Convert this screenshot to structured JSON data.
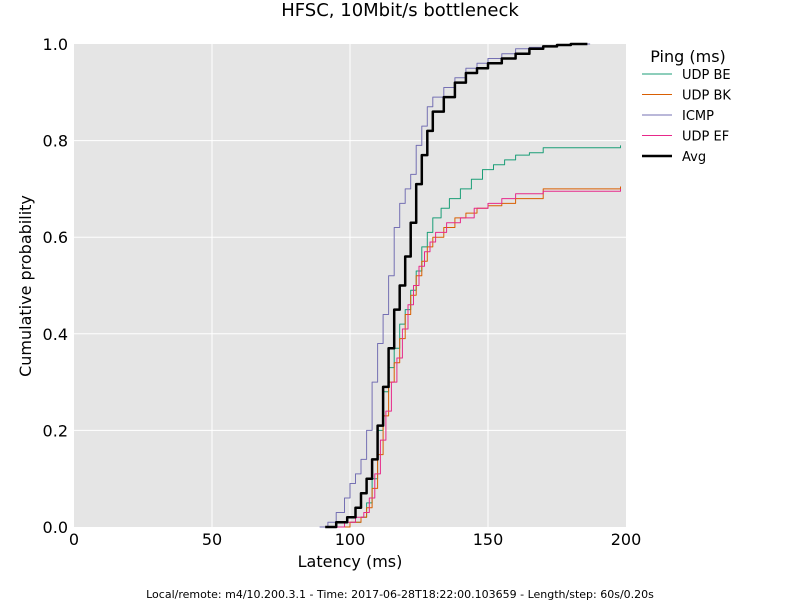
{
  "chart_data": {
    "type": "line",
    "title": "HFSC, 10Mbit/s bottleneck",
    "xlabel": "Latency (ms)",
    "ylabel": "Cumulative probability",
    "xlim": [
      0,
      200
    ],
    "ylim": [
      0,
      1.0
    ],
    "xticks": [
      "0",
      "50",
      "100",
      "150",
      "200"
    ],
    "yticks": [
      "0.0",
      "0.2",
      "0.4",
      "0.6",
      "0.8",
      "1.0"
    ],
    "grid": true,
    "legend": {
      "title": "Ping (ms)",
      "placement": "right-outside"
    },
    "series": [
      {
        "name": "UDP BE",
        "color": "#1b9e77",
        "width": 1,
        "x": [
          94,
          100,
          104,
          106,
          108,
          110,
          112,
          114,
          116,
          118,
          120,
          122,
          124,
          126,
          128,
          130,
          133,
          136,
          140,
          144,
          148,
          152,
          156,
          160,
          165,
          170,
          180,
          190,
          198
        ],
        "y": [
          0.0,
          0.01,
          0.02,
          0.05,
          0.1,
          0.2,
          0.28,
          0.33,
          0.37,
          0.42,
          0.45,
          0.49,
          0.53,
          0.58,
          0.61,
          0.64,
          0.66,
          0.68,
          0.7,
          0.72,
          0.74,
          0.75,
          0.76,
          0.77,
          0.775,
          0.785,
          0.785,
          0.785,
          0.79
        ]
      },
      {
        "name": "UDP BK",
        "color": "#d95f02",
        "width": 1,
        "x": [
          94,
          100,
          104,
          106,
          108,
          110,
          112,
          114,
          116,
          118,
          120,
          122,
          124,
          126,
          128,
          130,
          134,
          138,
          142,
          146,
          150,
          155,
          160,
          170,
          180,
          190,
          198
        ],
        "y": [
          0.0,
          0.01,
          0.02,
          0.04,
          0.08,
          0.15,
          0.23,
          0.3,
          0.34,
          0.39,
          0.44,
          0.48,
          0.52,
          0.55,
          0.58,
          0.6,
          0.62,
          0.64,
          0.65,
          0.66,
          0.665,
          0.67,
          0.68,
          0.7,
          0.7,
          0.7,
          0.705
        ]
      },
      {
        "name": "ICMP",
        "color": "#7570b3",
        "width": 1,
        "x": [
          89,
          92,
          95,
          98,
          100,
          102,
          104,
          106,
          108,
          110,
          112,
          114,
          116,
          118,
          120,
          122,
          124,
          126,
          128,
          130,
          134,
          138,
          142,
          146,
          150,
          155,
          160,
          165,
          170,
          175,
          180,
          187
        ],
        "y": [
          0.0,
          0.01,
          0.03,
          0.06,
          0.09,
          0.11,
          0.14,
          0.2,
          0.3,
          0.38,
          0.44,
          0.52,
          0.62,
          0.67,
          0.7,
          0.73,
          0.79,
          0.83,
          0.87,
          0.89,
          0.91,
          0.93,
          0.95,
          0.96,
          0.97,
          0.98,
          0.99,
          0.993,
          0.996,
          0.998,
          1.0,
          1.0
        ]
      },
      {
        "name": "UDP EF",
        "color": "#e7298a",
        "width": 1,
        "x": [
          93,
          98,
          102,
          105,
          107,
          109,
          111,
          113,
          115,
          117,
          119,
          121,
          123,
          125,
          127,
          129,
          131,
          135,
          140,
          145,
          150,
          155,
          160,
          170,
          180,
          190,
          198
        ],
        "y": [
          0.0,
          0.01,
          0.02,
          0.03,
          0.06,
          0.11,
          0.18,
          0.24,
          0.3,
          0.35,
          0.41,
          0.46,
          0.5,
          0.54,
          0.57,
          0.59,
          0.61,
          0.63,
          0.64,
          0.66,
          0.67,
          0.68,
          0.69,
          0.695,
          0.695,
          0.695,
          0.7
        ]
      },
      {
        "name": "Avg",
        "color": "#000000",
        "width": 2.5,
        "x": [
          91,
          95,
          99,
          102,
          104,
          106,
          108,
          110,
          112,
          114,
          116,
          118,
          120,
          122,
          124,
          126,
          128,
          130,
          134,
          138,
          142,
          146,
          150,
          155,
          160,
          165,
          170,
          175,
          180,
          186
        ],
        "y": [
          0.0,
          0.01,
          0.02,
          0.04,
          0.07,
          0.1,
          0.14,
          0.21,
          0.29,
          0.37,
          0.45,
          0.5,
          0.56,
          0.63,
          0.71,
          0.77,
          0.82,
          0.86,
          0.89,
          0.92,
          0.94,
          0.95,
          0.96,
          0.97,
          0.98,
          0.99,
          0.995,
          0.998,
          1.0,
          1.0
        ]
      }
    ]
  },
  "footer": "Local/remote: m4/10.200.3.1 - Time: 2017-06-28T18:22:00.103659 - Length/step: 60s/0.20s"
}
